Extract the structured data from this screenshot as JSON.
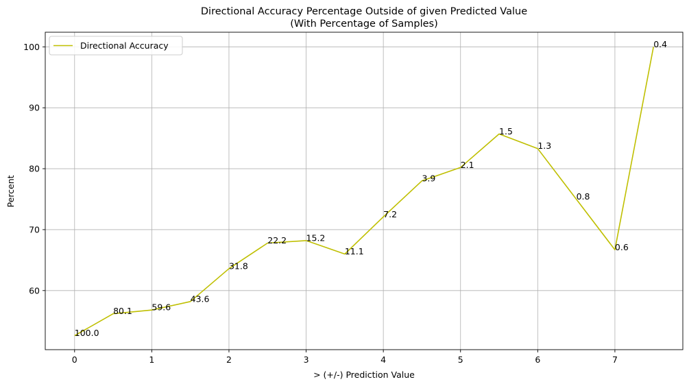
{
  "chart_data": {
    "type": "line",
    "title": "Directional Accuracy Percentage Outside of given Predicted Value",
    "subtitle": "(With Percentage of Samples)",
    "xlabel": "> (+/-) Prediction Value",
    "ylabel": "Percent",
    "xlim": [
      -0.38,
      7.88
    ],
    "ylim": [
      50.3,
      102.4
    ],
    "xticks": [
      0,
      1,
      2,
      3,
      4,
      5,
      6,
      7
    ],
    "yticks": [
      60,
      70,
      80,
      90,
      100
    ],
    "grid": true,
    "legend_position": "top-left",
    "series": [
      {
        "name": "Directional Accuracy",
        "color": "#bfbf00",
        "x": [
          0,
          0.5,
          1.0,
          1.5,
          2.0,
          2.5,
          3.0,
          3.5,
          4.0,
          4.5,
          5.0,
          5.5,
          6.0,
          6.5,
          7.0,
          7.5
        ],
        "y": [
          52.6,
          56.2,
          56.8,
          58.2,
          63.6,
          67.8,
          68.2,
          66.0,
          72.1,
          78.0,
          80.2,
          85.7,
          83.3,
          75.0,
          66.7,
          100.0
        ],
        "point_labels": [
          "100.0",
          "80.1",
          "59.6",
          "43.6",
          "31.8",
          "22.2",
          "15.2",
          "11.1",
          "7.2",
          "3.9",
          "2.1",
          "1.5",
          "1.3",
          "0.8",
          "0.6",
          "0.4"
        ]
      }
    ]
  }
}
